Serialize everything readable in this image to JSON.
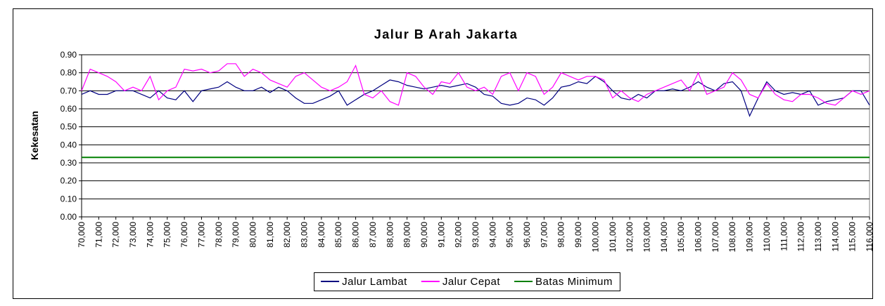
{
  "chart_data": {
    "type": "line",
    "title": "Jalur B Arah Jakarta",
    "y_label": "Kekesatan",
    "x": [
      70000,
      70500,
      71000,
      71500,
      72000,
      72500,
      73000,
      73500,
      74000,
      74500,
      75000,
      75500,
      76000,
      76500,
      77000,
      77500,
      78000,
      78500,
      79000,
      79500,
      80000,
      80500,
      81000,
      81500,
      82000,
      82500,
      83000,
      83500,
      84000,
      84500,
      85000,
      85500,
      86000,
      86500,
      87000,
      87500,
      88000,
      88500,
      89000,
      89500,
      90000,
      90500,
      91000,
      91500,
      92000,
      92500,
      93000,
      93500,
      94000,
      94500,
      95000,
      95500,
      96000,
      96500,
      97000,
      97500,
      98000,
      98500,
      99000,
      99500,
      100000,
      100500,
      101000,
      101500,
      102000,
      102500,
      103000,
      103500,
      104000,
      104500,
      105000,
      105500,
      106000,
      106500,
      107000,
      107500,
      108000,
      108500,
      109000,
      109500,
      110000,
      110500,
      111000,
      111500,
      112000,
      112500,
      113000,
      113500,
      114000,
      114500,
      115000,
      115500,
      116000
    ],
    "series": [
      {
        "name": "Jalur Lambat",
        "color": "#000080",
        "values": [
          0.68,
          0.7,
          0.68,
          0.68,
          0.7,
          0.7,
          0.7,
          0.68,
          0.66,
          0.7,
          0.66,
          0.65,
          0.7,
          0.64,
          0.7,
          0.71,
          0.72,
          0.75,
          0.72,
          0.7,
          0.7,
          0.72,
          0.69,
          0.72,
          0.7,
          0.66,
          0.63,
          0.63,
          0.65,
          0.67,
          0.7,
          0.62,
          0.65,
          0.68,
          0.7,
          0.73,
          0.76,
          0.75,
          0.73,
          0.72,
          0.71,
          0.72,
          0.73,
          0.72,
          0.73,
          0.74,
          0.72,
          0.68,
          0.67,
          0.63,
          0.62,
          0.63,
          0.66,
          0.65,
          0.62,
          0.66,
          0.72,
          0.73,
          0.75,
          0.74,
          0.78,
          0.75,
          0.7,
          0.66,
          0.65,
          0.68,
          0.66,
          0.7,
          0.7,
          0.71,
          0.7,
          0.72,
          0.75,
          0.72,
          0.7,
          0.74,
          0.75,
          0.7,
          0.56,
          0.66,
          0.75,
          0.7,
          0.68,
          0.69,
          0.68,
          0.7,
          0.62,
          0.64,
          0.65,
          0.66,
          0.7,
          0.7,
          0.62
        ]
      },
      {
        "name": "Jalur Cepat",
        "color": "#ff00ff",
        "values": [
          0.7,
          0.82,
          0.8,
          0.78,
          0.75,
          0.7,
          0.72,
          0.7,
          0.78,
          0.65,
          0.7,
          0.72,
          0.82,
          0.81,
          0.82,
          0.8,
          0.81,
          0.85,
          0.85,
          0.78,
          0.82,
          0.8,
          0.76,
          0.74,
          0.72,
          0.78,
          0.8,
          0.76,
          0.72,
          0.7,
          0.72,
          0.75,
          0.84,
          0.68,
          0.66,
          0.7,
          0.64,
          0.62,
          0.8,
          0.78,
          0.72,
          0.68,
          0.75,
          0.74,
          0.8,
          0.72,
          0.7,
          0.72,
          0.68,
          0.78,
          0.8,
          0.7,
          0.8,
          0.78,
          0.68,
          0.72,
          0.8,
          0.78,
          0.76,
          0.78,
          0.78,
          0.76,
          0.66,
          0.7,
          0.66,
          0.64,
          0.68,
          0.7,
          0.72,
          0.74,
          0.76,
          0.7,
          0.8,
          0.68,
          0.7,
          0.72,
          0.8,
          0.76,
          0.68,
          0.66,
          0.74,
          0.68,
          0.65,
          0.64,
          0.68,
          0.68,
          0.66,
          0.63,
          0.62,
          0.66,
          0.7,
          0.68,
          0.7
        ]
      },
      {
        "name": "Batas Minimum",
        "color": "#008000",
        "x": [
          70000,
          116000
        ],
        "values": [
          0.33,
          0.33
        ]
      }
    ],
    "xlim": [
      70000,
      116000
    ],
    "xticks": [
      {
        "value": 70000,
        "label": "70,000"
      },
      {
        "value": 71000,
        "label": "71,000"
      },
      {
        "value": 72000,
        "label": "72,000"
      },
      {
        "value": 73000,
        "label": "73,000"
      },
      {
        "value": 74000,
        "label": "74,000"
      },
      {
        "value": 75000,
        "label": "75,000"
      },
      {
        "value": 76000,
        "label": "76,000"
      },
      {
        "value": 77000,
        "label": "77,000"
      },
      {
        "value": 78000,
        "label": "78,000"
      },
      {
        "value": 79000,
        "label": "79,000"
      },
      {
        "value": 80000,
        "label": "80,000"
      },
      {
        "value": 81000,
        "label": "81,000"
      },
      {
        "value": 82000,
        "label": "82,000"
      },
      {
        "value": 83000,
        "label": "83,000"
      },
      {
        "value": 84000,
        "label": "84,000"
      },
      {
        "value": 85000,
        "label": "85,000"
      },
      {
        "value": 86000,
        "label": "86,000"
      },
      {
        "value": 87000,
        "label": "87,000"
      },
      {
        "value": 88000,
        "label": "88,000"
      },
      {
        "value": 89000,
        "label": "89,000"
      },
      {
        "value": 90000,
        "label": "90,000"
      },
      {
        "value": 91000,
        "label": "91,000"
      },
      {
        "value": 92000,
        "label": "92,000"
      },
      {
        "value": 93000,
        "label": "93,000"
      },
      {
        "value": 94000,
        "label": "94,000"
      },
      {
        "value": 95000,
        "label": "95,000"
      },
      {
        "value": 96000,
        "label": "96,000"
      },
      {
        "value": 97000,
        "label": "97,000"
      },
      {
        "value": 98000,
        "label": "98,000"
      },
      {
        "value": 99000,
        "label": "99,000"
      },
      {
        "value": 100000,
        "label": "100,000"
      },
      {
        "value": 101000,
        "label": "101,000"
      },
      {
        "value": 102000,
        "label": "102,000"
      },
      {
        "value": 103000,
        "label": "103,000"
      },
      {
        "value": 104000,
        "label": "104,000"
      },
      {
        "value": 105000,
        "label": "105,000"
      },
      {
        "value": 106000,
        "label": "106,000"
      },
      {
        "value": 107000,
        "label": "107,000"
      },
      {
        "value": 108000,
        "label": "108,000"
      },
      {
        "value": 109000,
        "label": "109,000"
      },
      {
        "value": 110000,
        "label": "110,000"
      },
      {
        "value": 111000,
        "label": "111,000"
      },
      {
        "value": 112000,
        "label": "112,000"
      },
      {
        "value": 113000,
        "label": "113,000"
      },
      {
        "value": 114000,
        "label": "114,000"
      },
      {
        "value": 115000,
        "label": "115,000"
      },
      {
        "value": 116000,
        "label": "116,000"
      }
    ],
    "ylim": [
      0,
      0.9
    ],
    "yticks": [
      {
        "value": 0,
        "label": "0.00"
      },
      {
        "value": 0.1,
        "label": "0.10"
      },
      {
        "value": 0.2,
        "label": "0.20"
      },
      {
        "value": 0.3,
        "label": "0.30"
      },
      {
        "value": 0.4,
        "label": "0.40"
      },
      {
        "value": 0.5,
        "label": "0.50"
      },
      {
        "value": 0.6,
        "label": "0.60"
      },
      {
        "value": 0.7,
        "label": "0.70"
      },
      {
        "value": 0.8,
        "label": "0.80"
      },
      {
        "value": 0.9,
        "label": "0.90"
      }
    ],
    "grid": true,
    "legend": "bottom"
  }
}
